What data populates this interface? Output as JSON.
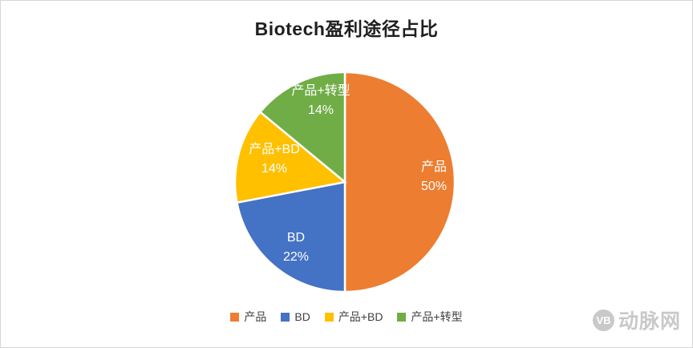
{
  "chart_data": {
    "type": "pie",
    "title": "Biotech盈利途径占比",
    "categories": [
      "产品",
      "BD",
      "产品+BD",
      "产品+转型"
    ],
    "values": [
      50,
      22,
      14,
      14
    ],
    "unit": "%",
    "start_angle_deg": 0,
    "direction": "clockwise",
    "legend_position": "bottom",
    "label_color": "#ffffff",
    "slices": [
      {
        "label": "产品",
        "value": 50,
        "pct": "50%",
        "color": "#ED7D31"
      },
      {
        "label": "BD",
        "value": 22,
        "pct": "22%",
        "color": "#4472C4"
      },
      {
        "label": "产品+BD",
        "value": 14,
        "pct": "14%",
        "color": "#FFC000"
      },
      {
        "label": "产品+转型",
        "value": 14,
        "pct": "14%",
        "color": "#70AD47"
      }
    ]
  },
  "watermark": {
    "logo_text": "VB",
    "brand_text": "动脉网"
  }
}
